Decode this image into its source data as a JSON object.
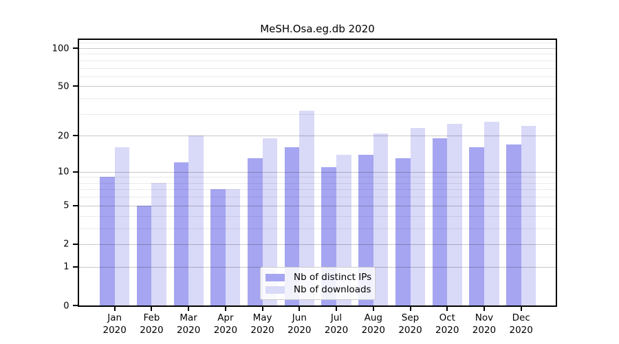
{
  "title": "MeSH.Osa.eg.db 2020",
  "legend": {
    "items": [
      {
        "label": "Nb of distinct IPs",
        "color": "#a5a5f1"
      },
      {
        "label": "Nb of downloads",
        "color": "#d9d9f8"
      }
    ]
  },
  "colors": {
    "ips_bar": "#a5a5f1",
    "downloads_bar": "#d9d9f8",
    "axis": "#000000",
    "major_grid": "#c8c8c8",
    "minor_grid": "#ebebeb",
    "background": "#ffffff"
  },
  "chart_data": {
    "type": "bar",
    "title": "MeSH.Osa.eg.db 2020",
    "categories": [
      "Jan",
      "Feb",
      "Mar",
      "Apr",
      "May",
      "Jun",
      "Jul",
      "Aug",
      "Sep",
      "Oct",
      "Nov",
      "Dec"
    ],
    "x_tick_second_line": "2020",
    "series": [
      {
        "name": "Nb of distinct IPs",
        "color": "#a5a5f1",
        "values": [
          9,
          5,
          12,
          7,
          13,
          16,
          11,
          14,
          13,
          19,
          16,
          17
        ]
      },
      {
        "name": "Nb of downloads",
        "color": "#d9d9f8",
        "values": [
          16,
          8,
          20,
          7,
          19,
          32,
          14,
          21,
          23,
          25,
          26,
          24
        ]
      }
    ],
    "xlabel": "",
    "ylabel": "",
    "yscale": "log1p",
    "ylim": [
      0,
      118
    ],
    "y_major_ticks": [
      0,
      1,
      2,
      5,
      10,
      20,
      50,
      100
    ],
    "y_minor_gridlines": [
      3,
      4,
      6,
      7,
      8,
      9,
      30,
      40,
      60,
      70,
      80,
      90,
      110
    ],
    "grid": true,
    "legend_position": "bottom-center"
  }
}
